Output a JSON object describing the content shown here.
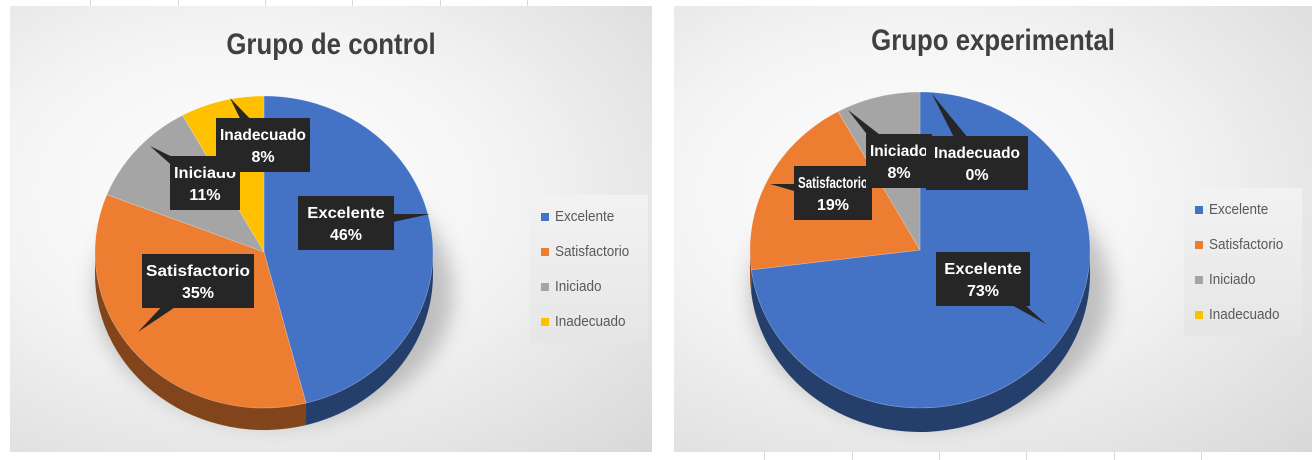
{
  "chart_data": [
    {
      "type": "pie",
      "title": "Grupo de control",
      "categories": [
        "Excelente",
        "Satisfactorio",
        "Iniciado",
        "Inadecuado"
      ],
      "values": [
        46,
        35,
        11,
        8
      ],
      "value_labels": [
        "46%",
        "35%",
        "11%",
        "8%"
      ],
      "legend_position": "right",
      "three_d": true
    },
    {
      "type": "pie",
      "title": "Grupo experimental",
      "categories": [
        "Excelente",
        "Satisfactorio",
        "Iniciado",
        "Inadecuado"
      ],
      "values": [
        73,
        19,
        8,
        0
      ],
      "value_labels": [
        "73%",
        "19%",
        "8%",
        "0%"
      ],
      "legend_position": "right",
      "three_d": true
    }
  ],
  "colors": {
    "Excelente": "#4472c4",
    "Satisfactorio": "#ed7d31",
    "Iniciado": "#a5a5a5",
    "Inadecuado": "#ffc000"
  }
}
